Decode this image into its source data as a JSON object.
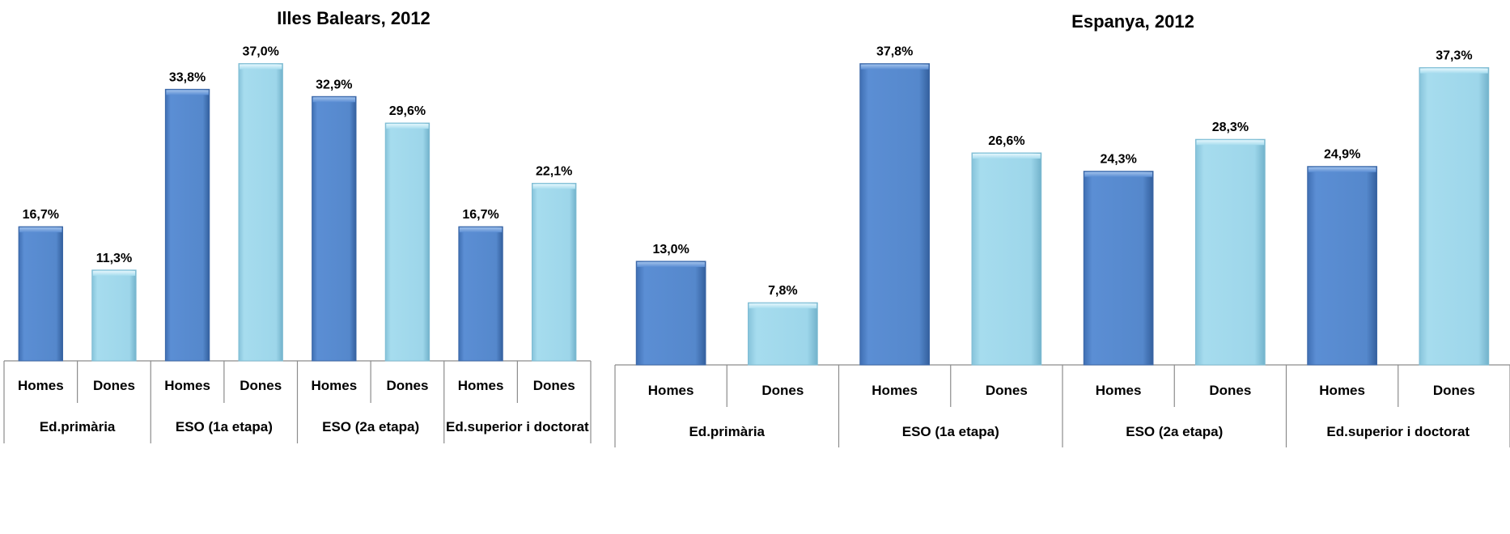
{
  "chart_data": [
    {
      "type": "bar",
      "title": "Illes Balears, 2012",
      "groups": [
        "Ed.primària",
        "ESO (1a etapa)",
        "ESO (2a etapa)",
        "Ed.superior i doctorat"
      ],
      "sub_categories": [
        "Homes",
        "Dones"
      ],
      "values": [
        [
          16.7,
          11.3
        ],
        [
          33.8,
          37.0
        ],
        [
          32.9,
          29.6
        ],
        [
          16.7,
          22.1
        ]
      ],
      "value_labels": [
        [
          "16,7%",
          "11,3%"
        ],
        [
          "33,8%",
          "37,0%"
        ],
        [
          "32,9%",
          "29,6%"
        ],
        [
          "16,7%",
          "22,1%"
        ]
      ],
      "ylim": [
        0,
        40
      ],
      "colors": {
        "Homes": "#5588cc",
        "Dones": "#9dd6ea"
      }
    },
    {
      "type": "bar",
      "title": "Espanya, 2012",
      "groups": [
        "Ed.primària",
        "ESO (1a etapa)",
        "ESO (2a etapa)",
        "Ed.superior i doctorat"
      ],
      "sub_categories": [
        "Homes",
        "Dones"
      ],
      "values": [
        [
          13.0,
          7.8
        ],
        [
          37.8,
          26.6
        ],
        [
          24.3,
          28.3
        ],
        [
          24.9,
          37.3
        ]
      ],
      "value_labels": [
        [
          "13,0%",
          "7,8%"
        ],
        [
          "37,8%",
          "26,6%"
        ],
        [
          "24,3%",
          "28,3%"
        ],
        [
          "24,9%",
          "37,3%"
        ]
      ],
      "ylim": [
        0,
        40
      ],
      "colors": {
        "Homes": "#5588cc",
        "Dones": "#9dd6ea"
      }
    }
  ]
}
